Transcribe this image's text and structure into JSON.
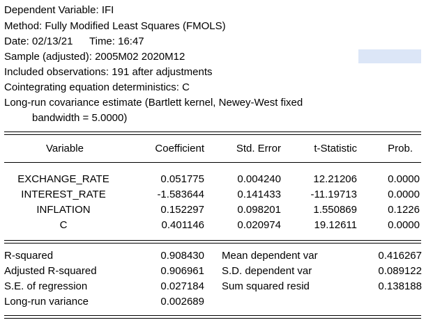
{
  "header": {
    "dependent_variable": "Dependent Variable: IFI",
    "method": "Method: Fully Modified Least Squares (FMOLS)",
    "date": "Date: 02/13/21",
    "time": "Time: 16:47",
    "sample": "Sample (adjusted): 2005M02 2020M12",
    "included_obs": "Included observations: 191 after adjustments",
    "cointegrating": "Cointegrating equation deterministics: C",
    "lrcov_line1": "Long-run covariance estimate (Bartlett kernel, Newey-West fixed",
    "lrcov_line2": "bandwidth = 5.0000)"
  },
  "table": {
    "headers": [
      "Variable",
      "Coefficient",
      "Std. Error",
      "t-Statistic",
      "Prob."
    ],
    "rows": [
      {
        "variable": "EXCHANGE_RATE",
        "coefficient": "0.051775",
        "std_error": "0.004240",
        "t_stat": "12.21206",
        "prob": "0.0000"
      },
      {
        "variable": "INTEREST_RATE",
        "coefficient": "-1.583644",
        "std_error": "0.141433",
        "t_stat": "-11.19713",
        "prob": "0.0000"
      },
      {
        "variable": "INFLATION",
        "coefficient": "0.152297",
        "std_error": "0.098201",
        "t_stat": "1.550869",
        "prob": "0.1226"
      },
      {
        "variable": "C",
        "coefficient": "0.401146",
        "std_error": "0.020974",
        "t_stat": "19.12611",
        "prob": "0.0000"
      }
    ]
  },
  "stats": {
    "left": [
      {
        "label": "R-squared",
        "value": "0.908430"
      },
      {
        "label": "Adjusted R-squared",
        "value": "0.906961"
      },
      {
        "label": "S.E. of regression",
        "value": "0.027184"
      },
      {
        "label": "Long-run variance",
        "value": "0.002689"
      }
    ],
    "right": [
      {
        "label": "Mean dependent var",
        "value": "0.416267"
      },
      {
        "label": "S.D. dependent var",
        "value": "0.089122"
      },
      {
        "label": "Sum squared resid",
        "value": "0.138188"
      }
    ]
  },
  "colors": {
    "selection_highlight": "#dce6f7"
  }
}
